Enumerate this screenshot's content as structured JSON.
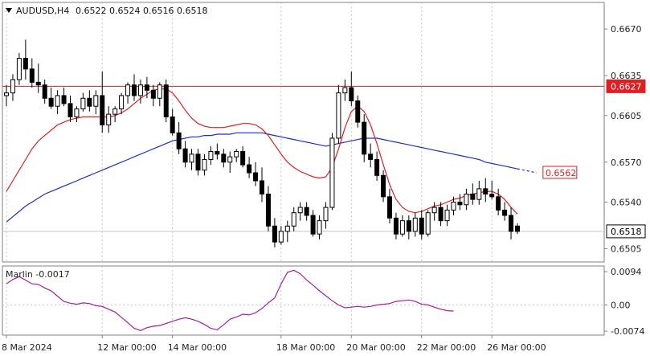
{
  "header": {
    "symbol": "AUDUSD,H4",
    "ohlc": "0.6522 0.6524 0.6516 0.6518",
    "menu_icon": "triangle-down-icon"
  },
  "indicator": {
    "label": "Marlin -0.0017"
  },
  "colors": {
    "bull_candle": "#ffffff",
    "bear_candle": "#000000",
    "ma_short": "#e02020",
    "ma_long": "#1c2fc8",
    "hline": "#e02020",
    "oscillator": "#a020a0",
    "grid": "#c8c8c8"
  },
  "chart_data": [
    {
      "type": "candlestick",
      "title": "AUDUSD,H4",
      "ylim": [
        0.6495,
        0.669
      ],
      "y_ticks": [
        "0.6670",
        "0.6635",
        "0.6605",
        "0.6570",
        "0.6540",
        "0.6505"
      ],
      "x_ticks": [
        "8 Mar 2024",
        "12 Mar 00:00",
        "14 Mar 00:00",
        "18 Mar 00:00",
        "20 Mar 00:00",
        "22 Mar 00:00",
        "26 Mar 00:00"
      ],
      "price_tags": [
        {
          "value": "0.6627",
          "style": "red-fill"
        },
        {
          "value": "0.6562",
          "style": "red-outline"
        },
        {
          "value": "0.6518",
          "style": "plain-box"
        }
      ],
      "horizontal_line": 0.6627,
      "current_price_line": 0.6518,
      "candles": [
        [
          0.662,
          0.6628,
          0.6612,
          0.6622
        ],
        [
          0.6622,
          0.6636,
          0.6616,
          0.6632
        ],
        [
          0.6632,
          0.6652,
          0.6628,
          0.6648
        ],
        [
          0.6648,
          0.6662,
          0.6632,
          0.664
        ],
        [
          0.664,
          0.6648,
          0.6626,
          0.663
        ],
        [
          0.663,
          0.6644,
          0.6622,
          0.6628
        ],
        [
          0.6628,
          0.6632,
          0.6614,
          0.6618
        ],
        [
          0.6618,
          0.6626,
          0.661,
          0.6612
        ],
        [
          0.6612,
          0.6624,
          0.6606,
          0.662
        ],
        [
          0.662,
          0.6626,
          0.6612,
          0.6614
        ],
        [
          0.6614,
          0.662,
          0.66,
          0.6604
        ],
        [
          0.6604,
          0.6612,
          0.66,
          0.661
        ],
        [
          0.661,
          0.6622,
          0.6608,
          0.6618
        ],
        [
          0.6618,
          0.6624,
          0.6608,
          0.6612
        ],
        [
          0.6612,
          0.6624,
          0.6606,
          0.662
        ],
        [
          0.662,
          0.6638,
          0.6592,
          0.6598
        ],
        [
          0.6598,
          0.6612,
          0.6592,
          0.6606
        ],
        [
          0.6606,
          0.6612,
          0.66,
          0.661
        ],
        [
          0.661,
          0.6622,
          0.6606,
          0.662
        ],
        [
          0.662,
          0.663,
          0.6614,
          0.6628
        ],
        [
          0.6628,
          0.6636,
          0.6616,
          0.662
        ],
        [
          0.662,
          0.6632,
          0.6614,
          0.6628
        ],
        [
          0.6628,
          0.6634,
          0.6618,
          0.6624
        ],
        [
          0.6624,
          0.6628,
          0.6612,
          0.6618
        ],
        [
          0.6618,
          0.663,
          0.6612,
          0.6628
        ],
        [
          0.6628,
          0.6632,
          0.66,
          0.6604
        ],
        [
          0.6604,
          0.661,
          0.659,
          0.6592
        ],
        [
          0.6592,
          0.66,
          0.6576,
          0.658
        ],
        [
          0.658,
          0.6586,
          0.6566,
          0.657
        ],
        [
          0.657,
          0.658,
          0.6564,
          0.6576
        ],
        [
          0.6576,
          0.658,
          0.656,
          0.6564
        ],
        [
          0.6564,
          0.6576,
          0.656,
          0.6572
        ],
        [
          0.6572,
          0.6582,
          0.6568,
          0.6578
        ],
        [
          0.6578,
          0.6584,
          0.6572,
          0.6576
        ],
        [
          0.6576,
          0.658,
          0.6566,
          0.657
        ],
        [
          0.657,
          0.6578,
          0.6562,
          0.6574
        ],
        [
          0.6574,
          0.658,
          0.657,
          0.6578
        ],
        [
          0.6578,
          0.6582,
          0.6566,
          0.6568
        ],
        [
          0.6568,
          0.6574,
          0.6558,
          0.6562
        ],
        [
          0.6562,
          0.657,
          0.6552,
          0.6556
        ],
        [
          0.6556,
          0.6566,
          0.654,
          0.6546
        ],
        [
          0.6546,
          0.6552,
          0.6518,
          0.6522
        ],
        [
          0.6522,
          0.6528,
          0.6506,
          0.651
        ],
        [
          0.651,
          0.6522,
          0.6508,
          0.6518
        ],
        [
          0.6518,
          0.6526,
          0.651,
          0.6522
        ],
        [
          0.6522,
          0.6536,
          0.6518,
          0.6532
        ],
        [
          0.6532,
          0.654,
          0.6526,
          0.6536
        ],
        [
          0.6536,
          0.654,
          0.6526,
          0.653
        ],
        [
          0.653,
          0.6534,
          0.6514,
          0.6516
        ],
        [
          0.6516,
          0.653,
          0.6512,
          0.6526
        ],
        [
          0.6526,
          0.654,
          0.652,
          0.6536
        ],
        [
          0.6536,
          0.6592,
          0.6534,
          0.6588
        ],
        [
          0.6588,
          0.6628,
          0.6584,
          0.6622
        ],
        [
          0.6622,
          0.6632,
          0.6616,
          0.6626
        ],
        [
          0.6626,
          0.6638,
          0.6612,
          0.6616
        ],
        [
          0.6616,
          0.662,
          0.6596,
          0.66
        ],
        [
          0.66,
          0.6606,
          0.657,
          0.6576
        ],
        [
          0.6576,
          0.6584,
          0.6566,
          0.6572
        ],
        [
          0.6572,
          0.6578,
          0.6556,
          0.656
        ],
        [
          0.656,
          0.6564,
          0.654,
          0.6544
        ],
        [
          0.6544,
          0.655,
          0.6524,
          0.6528
        ],
        [
          0.6528,
          0.6532,
          0.6512,
          0.6516
        ],
        [
          0.6516,
          0.653,
          0.6514,
          0.6526
        ],
        [
          0.6526,
          0.653,
          0.6512,
          0.6518
        ],
        [
          0.6518,
          0.6532,
          0.6514,
          0.6528
        ],
        [
          0.6528,
          0.6534,
          0.6512,
          0.6516
        ],
        [
          0.6516,
          0.6534,
          0.6514,
          0.6532
        ],
        [
          0.6532,
          0.654,
          0.6526,
          0.6536
        ],
        [
          0.6536,
          0.654,
          0.6522,
          0.6526
        ],
        [
          0.6526,
          0.6538,
          0.6522,
          0.6534
        ],
        [
          0.6534,
          0.6544,
          0.653,
          0.654
        ],
        [
          0.654,
          0.6546,
          0.6534,
          0.6538
        ],
        [
          0.6538,
          0.655,
          0.6534,
          0.6546
        ],
        [
          0.6546,
          0.6554,
          0.6538,
          0.6542
        ],
        [
          0.6542,
          0.6556,
          0.6538,
          0.655
        ],
        [
          0.655,
          0.6558,
          0.654,
          0.6546
        ],
        [
          0.6546,
          0.6556,
          0.6542,
          0.6544
        ],
        [
          0.6544,
          0.655,
          0.653,
          0.6534
        ],
        [
          0.6534,
          0.654,
          0.6526,
          0.653
        ],
        [
          0.653,
          0.6536,
          0.6512,
          0.6518
        ],
        [
          0.6522,
          0.6524,
          0.6516,
          0.6518
        ]
      ],
      "ma_short_values": [
        0.6548,
        0.6556,
        0.6564,
        0.6572,
        0.658,
        0.6586,
        0.659,
        0.6594,
        0.6598,
        0.66,
        0.6602,
        0.6603,
        0.6604,
        0.6604,
        0.6604,
        0.6604,
        0.6604,
        0.6605,
        0.6607,
        0.661,
        0.6614,
        0.6618,
        0.6621,
        0.6624,
        0.6625,
        0.6625,
        0.6622,
        0.6616,
        0.6609,
        0.6603,
        0.6599,
        0.6597,
        0.6596,
        0.6596,
        0.6596,
        0.6597,
        0.6598,
        0.6599,
        0.6599,
        0.6598,
        0.6595,
        0.659,
        0.6583,
        0.6576,
        0.657,
        0.6566,
        0.6563,
        0.6561,
        0.6559,
        0.6558,
        0.6559,
        0.6566,
        0.658,
        0.6596,
        0.6608,
        0.6612,
        0.6608,
        0.6598,
        0.6584,
        0.6568,
        0.6553,
        0.6542,
        0.6536,
        0.6533,
        0.6532,
        0.6533,
        0.6535,
        0.6537,
        0.6538,
        0.654,
        0.6542,
        0.6543,
        0.6545,
        0.6546,
        0.6547,
        0.6548,
        0.6548,
        0.6546,
        0.6542,
        0.6536,
        0.6531
      ],
      "ma_long_values": [
        0.6525,
        0.6529,
        0.6533,
        0.6537,
        0.654,
        0.6543,
        0.6546,
        0.6548,
        0.655,
        0.6552,
        0.6554,
        0.6556,
        0.6558,
        0.656,
        0.6562,
        0.6564,
        0.6566,
        0.6568,
        0.657,
        0.6572,
        0.6574,
        0.6576,
        0.6578,
        0.658,
        0.6582,
        0.6584,
        0.6586,
        0.6587,
        0.6588,
        0.6589,
        0.6589,
        0.659,
        0.659,
        0.6591,
        0.6591,
        0.6591,
        0.6592,
        0.6592,
        0.6592,
        0.6592,
        0.6592,
        0.6591,
        0.659,
        0.6589,
        0.6588,
        0.6587,
        0.6586,
        0.6585,
        0.6584,
        0.6583,
        0.6582,
        0.6583,
        0.6584,
        0.6585,
        0.6586,
        0.6587,
        0.6588,
        0.6588,
        0.6588,
        0.6587,
        0.6586,
        0.6585,
        0.6584,
        0.6583,
        0.6582,
        0.6581,
        0.658,
        0.6579,
        0.6578,
        0.6577,
        0.6576,
        0.6575,
        0.6574,
        0.6573,
        0.6572,
        0.657,
        0.6569,
        0.6568,
        0.6567,
        0.6566,
        0.6565
      ],
      "ma_long_projection": [
        0.6565,
        0.6564,
        0.6563,
        0.6562
      ]
    },
    {
      "type": "line",
      "title": "Marlin -0.0017",
      "ylim": [
        -0.0085,
        0.011
      ],
      "y_ticks": [
        "0.0094",
        "0.00",
        "-0.0074"
      ],
      "values": [
        0.006,
        0.0072,
        0.008,
        0.007,
        0.006,
        0.0058,
        0.0048,
        0.004,
        0.0025,
        0.001,
        0.0005,
        0.0002,
        0.0006,
        0.0004,
        -0.0002,
        -0.0004,
        -0.0012,
        -0.002,
        -0.0035,
        -0.005,
        -0.0066,
        -0.0072,
        -0.0064,
        -0.006,
        -0.0058,
        -0.0052,
        -0.0046,
        -0.004,
        -0.0036,
        -0.004,
        -0.0046,
        -0.0055,
        -0.0066,
        -0.007,
        -0.0056,
        -0.004,
        -0.0034,
        -0.0026,
        -0.0028,
        -0.0022,
        -0.001,
        0.0006,
        0.002,
        0.006,
        0.0092,
        0.0098,
        0.0088,
        0.007,
        0.0056,
        0.004,
        0.0026,
        0.0012,
        0.0,
        -0.0008,
        -0.0006,
        -0.0004,
        -0.0006,
        -0.0004,
        0.0,
        0.0002,
        0.0004,
        0.001,
        0.0012,
        0.0014,
        0.001,
        0.0002,
        0.0,
        -0.0006,
        -0.0012,
        -0.0016,
        -0.0017
      ]
    }
  ]
}
